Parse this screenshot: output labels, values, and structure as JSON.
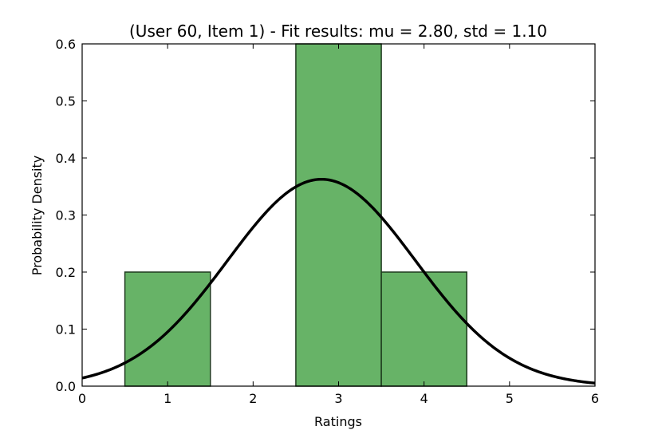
{
  "chart_data": {
    "type": "bar",
    "title": "(User 60, Item 1) - Fit results: mu = 2.80,  std = 1.10",
    "xlabel": "Ratings",
    "ylabel": "Probability Density",
    "xlim": [
      0,
      6
    ],
    "ylim": [
      0,
      0.6
    ],
    "xticks": [
      "0",
      "1",
      "2",
      "3",
      "4",
      "5",
      "6"
    ],
    "yticks": [
      "0.0",
      "0.1",
      "0.2",
      "0.3",
      "0.4",
      "0.5",
      "0.6"
    ],
    "grid": false,
    "histogram": {
      "bins": [
        {
          "x0": 0.5,
          "x1": 1.5,
          "density": 0.2
        },
        {
          "x0": 1.5,
          "x1": 2.5,
          "density": 0.0
        },
        {
          "x0": 2.5,
          "x1": 3.5,
          "density": 0.6
        },
        {
          "x0": 3.5,
          "x1": 4.5,
          "density": 0.2
        }
      ],
      "color": "#4ca64c"
    },
    "fit_curve": {
      "distribution": "normal",
      "mu": 2.8,
      "std": 1.1,
      "color": "#000000"
    }
  }
}
